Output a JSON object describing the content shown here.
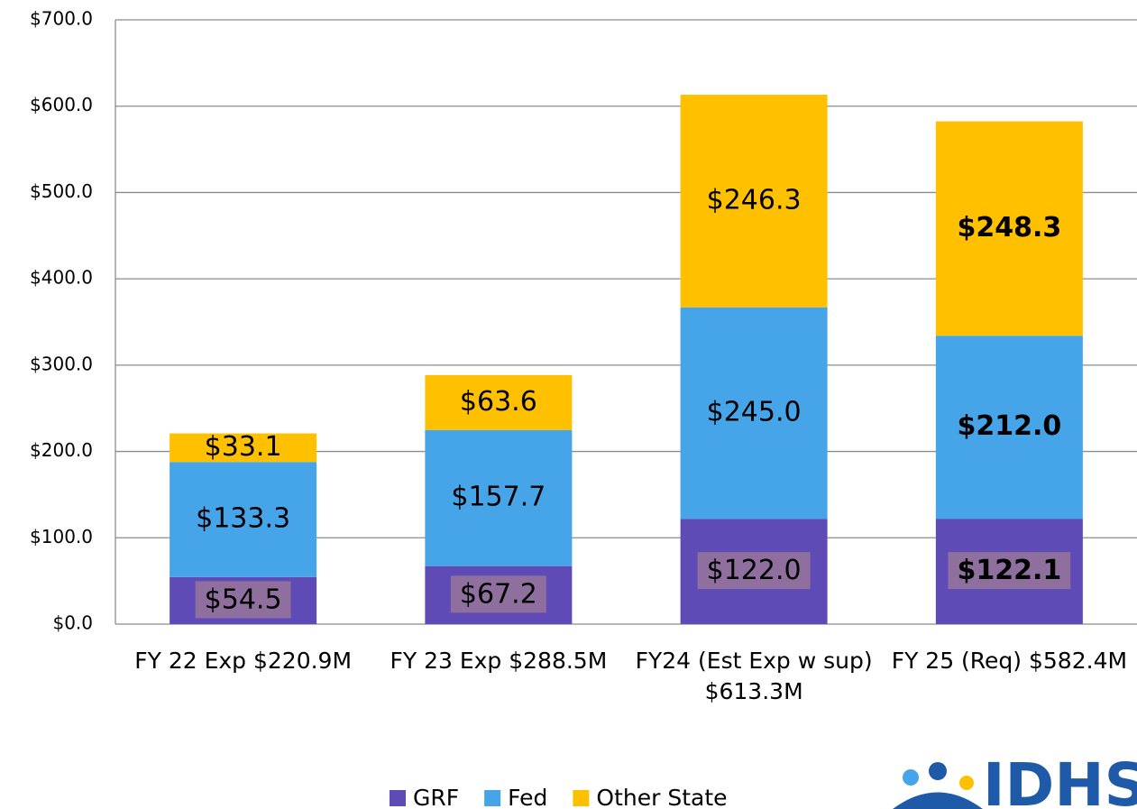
{
  "chart_data": {
    "type": "stacked_bar",
    "categories": [
      "FY 22 Exp $220.9M",
      "FY 23 Exp $288.5M",
      "FY24 (Est Exp w sup) $613.3M",
      "FY 25 (Req) $582.4M"
    ],
    "series": [
      {
        "name": "GRF",
        "color": "#5f4bb6",
        "values": [
          54.5,
          67.2,
          122.0,
          122.1
        ],
        "value_labels": [
          "$54.5",
          "$67.2",
          "$122.0",
          "$122.1"
        ]
      },
      {
        "name": "Fed",
        "color": "#45a5e8",
        "values": [
          133.3,
          157.7,
          245.0,
          212.0
        ],
        "value_labels": [
          "$133.3",
          "$157.7",
          "$245.0",
          "$212.0"
        ]
      },
      {
        "name": "Other State",
        "color": "#ffc000",
        "values": [
          33.1,
          63.6,
          246.3,
          248.3
        ],
        "value_labels": [
          "$33.1",
          "$63.6",
          "$246.3",
          "$248.3"
        ]
      }
    ],
    "value_label_bold": [
      false,
      false,
      false,
      true
    ],
    "ylim": [
      0,
      700
    ],
    "yticks": [
      {
        "value": 0,
        "label": "$0.0"
      },
      {
        "value": 100,
        "label": "$100.0"
      },
      {
        "value": 200,
        "label": "$200.0"
      },
      {
        "value": 300,
        "label": "$300.0"
      },
      {
        "value": 400,
        "label": "$400.0"
      },
      {
        "value": 500,
        "label": "$500.0"
      },
      {
        "value": 600,
        "label": "$600.0"
      },
      {
        "value": 700,
        "label": "$700.0"
      }
    ],
    "grid": true,
    "legend": "bottom",
    "logo": "IDHS"
  }
}
